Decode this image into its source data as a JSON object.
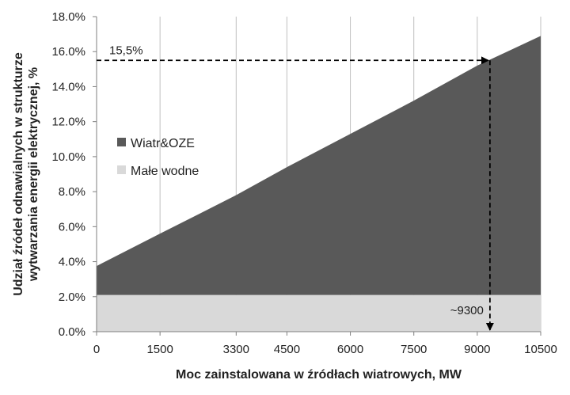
{
  "chart_data": {
    "type": "area",
    "x": [
      0,
      1500,
      3300,
      4500,
      6000,
      7500,
      9000,
      10500
    ],
    "x_tick_labels": [
      "0",
      "1500",
      "3300",
      "4500",
      "6000",
      "7500",
      "9000",
      "10500"
    ],
    "y_tick_labels": [
      "0.0%",
      "2.0%",
      "4.0%",
      "6.0%",
      "8.0%",
      "10.0%",
      "12.0%",
      "14.0%",
      "16.0%",
      "18.0%"
    ],
    "ylim": [
      0,
      18
    ],
    "series": [
      {
        "name": "Małe wodne",
        "values": [
          2.1,
          2.1,
          2.1,
          2.1,
          2.1,
          2.1,
          2.1,
          2.1
        ],
        "color": "#d9d9d9"
      },
      {
        "name": "Wiatr&OZE",
        "values": [
          1.65,
          3.5,
          5.7,
          7.3,
          9.2,
          11.1,
          13.1,
          14.8
        ],
        "color": "#595959"
      }
    ],
    "xlabel": "Moc zainstalowana  w źródłach wiatrowych, MW",
    "ylabel_line1": "Udział źródeł odnawialnych w strukturze",
    "ylabel_line2": "wytwarzania energii elektrycznej, %",
    "legend_placement": "left",
    "grid": "vertical",
    "annotations": {
      "share_label": "15,5%",
      "share_value": 15.5,
      "power_label": "~9300",
      "power_value": 9300
    }
  }
}
